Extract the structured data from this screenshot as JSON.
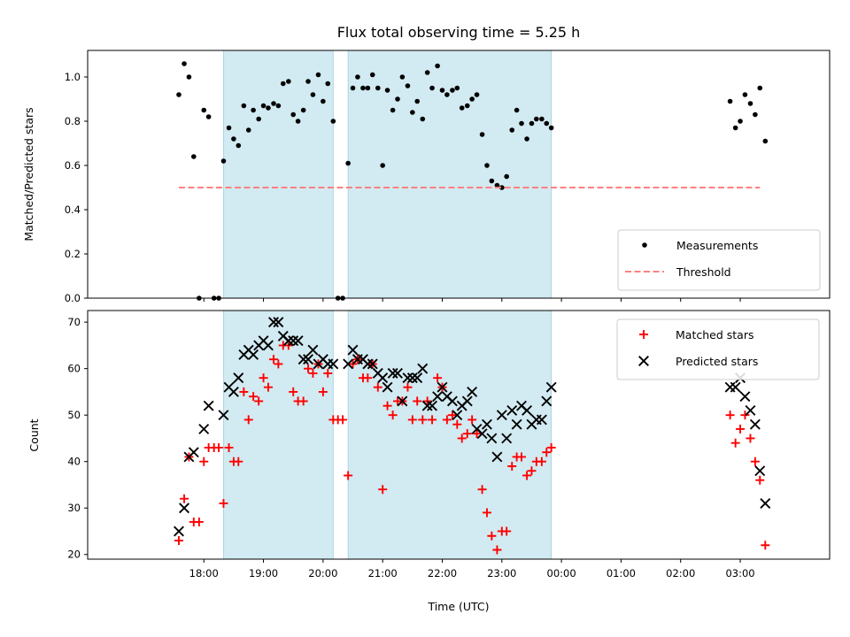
{
  "chart_data": [
    {
      "type": "scatter",
      "title": "Flux total observing time = 5.25 h",
      "xlabel": "",
      "ylabel": "Matched/Predicted stars",
      "ylim": [
        0,
        1.12
      ],
      "yticks": [
        0.0,
        0.2,
        0.4,
        0.6,
        0.8,
        1.0
      ],
      "ytick_labels": [
        "0.0",
        "0.2",
        "0.4",
        "0.6",
        "0.8",
        "1.0"
      ],
      "x_unit": "hours since 17:00 UTC",
      "xlim": [
        -0.95,
        11.5
      ],
      "xticks": [
        1,
        2,
        3,
        4,
        5,
        6,
        7,
        8,
        9,
        10
      ],
      "shaded_intervals": [
        [
          1.33,
          3.17
        ],
        [
          3.42,
          6.83
        ]
      ],
      "shade_color": "#add8e6",
      "legend_position": "lower right",
      "legend": [
        "Measurements",
        "Threshold"
      ],
      "series": [
        {
          "name": "Measurements",
          "marker": "dot",
          "color": "#000000",
          "points": [
            [
              0.58,
              0.92
            ],
            [
              0.67,
              1.06
            ],
            [
              0.75,
              1.0
            ],
            [
              0.83,
              0.64
            ],
            [
              0.92,
              0.0
            ],
            [
              1.0,
              0.85
            ],
            [
              1.08,
              0.82
            ],
            [
              1.17,
              0.0
            ],
            [
              1.25,
              0.0
            ],
            [
              1.33,
              0.62
            ],
            [
              1.42,
              0.77
            ],
            [
              1.5,
              0.72
            ],
            [
              1.58,
              0.69
            ],
            [
              1.67,
              0.87
            ],
            [
              1.75,
              0.76
            ],
            [
              1.83,
              0.85
            ],
            [
              1.92,
              0.81
            ],
            [
              2.0,
              0.87
            ],
            [
              2.08,
              0.86
            ],
            [
              2.17,
              0.88
            ],
            [
              2.25,
              0.87
            ],
            [
              2.33,
              0.97
            ],
            [
              2.42,
              0.98
            ],
            [
              2.5,
              0.83
            ],
            [
              2.58,
              0.8
            ],
            [
              2.67,
              0.85
            ],
            [
              2.75,
              0.98
            ],
            [
              2.83,
              0.92
            ],
            [
              2.92,
              1.01
            ],
            [
              3.0,
              0.89
            ],
            [
              3.08,
              0.97
            ],
            [
              3.17,
              0.8
            ],
            [
              3.25,
              0.0
            ],
            [
              3.33,
              0.0
            ],
            [
              3.42,
              0.61
            ],
            [
              3.5,
              0.95
            ],
            [
              3.58,
              1.0
            ],
            [
              3.67,
              0.95
            ],
            [
              3.75,
              0.95
            ],
            [
              3.83,
              1.01
            ],
            [
              3.92,
              0.95
            ],
            [
              4.0,
              0.6
            ],
            [
              4.08,
              0.94
            ],
            [
              4.17,
              0.85
            ],
            [
              4.25,
              0.9
            ],
            [
              4.33,
              1.0
            ],
            [
              4.42,
              0.96
            ],
            [
              4.5,
              0.84
            ],
            [
              4.58,
              0.89
            ],
            [
              4.67,
              0.81
            ],
            [
              4.75,
              1.02
            ],
            [
              4.83,
              0.95
            ],
            [
              4.92,
              1.05
            ],
            [
              5.0,
              0.94
            ],
            [
              5.08,
              0.92
            ],
            [
              5.17,
              0.94
            ],
            [
              5.25,
              0.95
            ],
            [
              5.33,
              0.86
            ],
            [
              5.42,
              0.87
            ],
            [
              5.5,
              0.9
            ],
            [
              5.58,
              0.92
            ],
            [
              5.67,
              0.74
            ],
            [
              5.75,
              0.6
            ],
            [
              5.83,
              0.53
            ],
            [
              5.92,
              0.51
            ],
            [
              6.0,
              0.5
            ],
            [
              6.08,
              0.55
            ],
            [
              6.17,
              0.76
            ],
            [
              6.25,
              0.85
            ],
            [
              6.33,
              0.79
            ],
            [
              6.42,
              0.72
            ],
            [
              6.5,
              0.79
            ],
            [
              6.58,
              0.81
            ],
            [
              6.67,
              0.81
            ],
            [
              6.75,
              0.79
            ],
            [
              6.83,
              0.77
            ],
            [
              9.83,
              0.89
            ],
            [
              9.92,
              0.77
            ],
            [
              10.0,
              0.8
            ],
            [
              10.08,
              0.92
            ],
            [
              10.17,
              0.88
            ],
            [
              10.25,
              0.83
            ],
            [
              10.33,
              0.95
            ],
            [
              10.42,
              0.71
            ]
          ]
        },
        {
          "name": "Threshold",
          "marker": "dashed-line",
          "color": "#ff8080",
          "points": [
            [
              0.58,
              0.5
            ],
            [
              10.33,
              0.5
            ]
          ]
        }
      ]
    },
    {
      "type": "scatter",
      "xlabel": "Time (UTC)",
      "ylabel": "Count",
      "ylim": [
        19,
        72.5
      ],
      "yticks": [
        20,
        30,
        40,
        50,
        60,
        70
      ],
      "ytick_labels": [
        "20",
        "30",
        "40",
        "50",
        "60",
        "70"
      ],
      "x_unit": "hours since 17:00 UTC",
      "xlim": [
        -0.95,
        11.5
      ],
      "xticks": [
        1,
        2,
        3,
        4,
        5,
        6,
        7,
        8,
        9,
        10
      ],
      "xtick_labels": [
        "18:00",
        "19:00",
        "20:00",
        "21:00",
        "22:00",
        "23:00",
        "00:00",
        "01:00",
        "02:00",
        "03:00"
      ],
      "shaded_intervals": [
        [
          1.33,
          3.17
        ],
        [
          3.42,
          6.83
        ]
      ],
      "shade_color": "#add8e6",
      "legend_position": "upper right",
      "legend": [
        "Matched stars",
        "Predicted stars"
      ],
      "series": [
        {
          "name": "Matched stars",
          "marker": "plus",
          "color": "#ff0000",
          "points": [
            [
              0.58,
              23
            ],
            [
              0.67,
              32
            ],
            [
              0.75,
              41
            ],
            [
              0.83,
              27
            ],
            [
              0.92,
              27
            ],
            [
              1.0,
              40
            ],
            [
              1.08,
              43
            ],
            [
              1.17,
              43
            ],
            [
              1.25,
              43
            ],
            [
              1.33,
              31
            ],
            [
              1.42,
              43
            ],
            [
              1.5,
              40
            ],
            [
              1.58,
              40
            ],
            [
              1.67,
              55
            ],
            [
              1.75,
              49
            ],
            [
              1.83,
              54
            ],
            [
              1.92,
              53
            ],
            [
              2.0,
              58
            ],
            [
              2.08,
              56
            ],
            [
              2.17,
              62
            ],
            [
              2.25,
              61
            ],
            [
              2.33,
              65
            ],
            [
              2.42,
              65
            ],
            [
              2.5,
              55
            ],
            [
              2.58,
              53
            ],
            [
              2.67,
              53
            ],
            [
              2.75,
              60
            ],
            [
              2.83,
              59
            ],
            [
              2.92,
              61
            ],
            [
              3.0,
              55
            ],
            [
              3.08,
              59
            ],
            [
              3.17,
              49
            ],
            [
              3.25,
              49
            ],
            [
              3.33,
              49
            ],
            [
              3.42,
              37
            ],
            [
              3.5,
              61
            ],
            [
              3.58,
              62
            ],
            [
              3.67,
              58
            ],
            [
              3.75,
              58
            ],
            [
              3.83,
              61
            ],
            [
              3.92,
              56
            ],
            [
              4.0,
              34
            ],
            [
              4.08,
              52
            ],
            [
              4.17,
              50
            ],
            [
              4.25,
              53
            ],
            [
              4.33,
              53
            ],
            [
              4.42,
              56
            ],
            [
              4.5,
              49
            ],
            [
              4.58,
              53
            ],
            [
              4.67,
              49
            ],
            [
              4.75,
              53
            ],
            [
              4.83,
              49
            ],
            [
              4.92,
              58
            ],
            [
              5.0,
              56
            ],
            [
              5.08,
              49
            ],
            [
              5.17,
              50
            ],
            [
              5.25,
              48
            ],
            [
              5.33,
              45
            ],
            [
              5.42,
              46
            ],
            [
              5.5,
              49
            ],
            [
              5.58,
              46
            ],
            [
              5.67,
              34
            ],
            [
              5.75,
              29
            ],
            [
              5.83,
              24
            ],
            [
              5.92,
              21
            ],
            [
              6.0,
              25
            ],
            [
              6.08,
              25
            ],
            [
              6.17,
              39
            ],
            [
              6.25,
              41
            ],
            [
              6.33,
              41
            ],
            [
              6.42,
              37
            ],
            [
              6.5,
              38
            ],
            [
              6.58,
              40
            ],
            [
              6.67,
              40
            ],
            [
              6.75,
              42
            ],
            [
              6.83,
              43
            ],
            [
              9.83,
              50
            ],
            [
              9.92,
              44
            ],
            [
              10.0,
              47
            ],
            [
              10.08,
              50
            ],
            [
              10.17,
              45
            ],
            [
              10.25,
              40
            ],
            [
              10.33,
              36
            ],
            [
              10.42,
              22
            ]
          ]
        },
        {
          "name": "Predicted stars",
          "marker": "x",
          "color": "#000000",
          "points": [
            [
              0.58,
              25
            ],
            [
              0.67,
              30
            ],
            [
              0.75,
              41
            ],
            [
              0.83,
              42
            ],
            [
              1.0,
              47
            ],
            [
              1.08,
              52
            ],
            [
              1.33,
              50
            ],
            [
              1.42,
              56
            ],
            [
              1.5,
              55
            ],
            [
              1.58,
              58
            ],
            [
              1.67,
              63
            ],
            [
              1.75,
              64
            ],
            [
              1.83,
              63
            ],
            [
              1.92,
              65
            ],
            [
              2.0,
              66
            ],
            [
              2.08,
              65
            ],
            [
              2.17,
              70
            ],
            [
              2.25,
              70
            ],
            [
              2.33,
              67
            ],
            [
              2.42,
              66
            ],
            [
              2.5,
              66
            ],
            [
              2.58,
              66
            ],
            [
              2.67,
              62
            ],
            [
              2.75,
              62
            ],
            [
              2.83,
              64
            ],
            [
              2.92,
              61
            ],
            [
              3.0,
              62
            ],
            [
              3.08,
              61
            ],
            [
              3.17,
              61
            ],
            [
              3.42,
              61
            ],
            [
              3.5,
              64
            ],
            [
              3.58,
              62
            ],
            [
              3.67,
              62
            ],
            [
              3.75,
              61
            ],
            [
              3.83,
              61
            ],
            [
              3.92,
              59
            ],
            [
              4.0,
              58
            ],
            [
              4.08,
              56
            ],
            [
              4.17,
              59
            ],
            [
              4.25,
              59
            ],
            [
              4.33,
              53
            ],
            [
              4.42,
              58
            ],
            [
              4.5,
              58
            ],
            [
              4.58,
              58
            ],
            [
              4.67,
              60
            ],
            [
              4.75,
              52
            ],
            [
              4.83,
              52
            ],
            [
              4.92,
              54
            ],
            [
              5.0,
              56
            ],
            [
              5.08,
              54
            ],
            [
              5.17,
              53
            ],
            [
              5.25,
              50
            ],
            [
              5.33,
              52
            ],
            [
              5.42,
              53
            ],
            [
              5.5,
              55
            ],
            [
              5.58,
              47
            ],
            [
              5.67,
              46
            ],
            [
              5.75,
              48
            ],
            [
              5.83,
              45
            ],
            [
              5.92,
              41
            ],
            [
              6.0,
              50
            ],
            [
              6.08,
              45
            ],
            [
              6.17,
              51
            ],
            [
              6.25,
              48
            ],
            [
              6.33,
              52
            ],
            [
              6.42,
              51
            ],
            [
              6.5,
              48
            ],
            [
              6.58,
              49
            ],
            [
              6.67,
              49
            ],
            [
              6.75,
              53
            ],
            [
              6.83,
              56
            ],
            [
              9.83,
              56
            ],
            [
              9.92,
              56
            ],
            [
              10.0,
              58
            ],
            [
              10.08,
              54
            ],
            [
              10.17,
              51
            ],
            [
              10.25,
              48
            ],
            [
              10.33,
              38
            ],
            [
              10.42,
              31
            ]
          ]
        }
      ]
    }
  ]
}
